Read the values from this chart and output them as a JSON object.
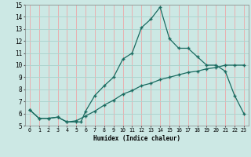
{
  "xlabel": "Humidex (Indice chaleur)",
  "background_color": "#cce8e4",
  "grid_color": "#aed4cf",
  "line_color": "#1a6b60",
  "xlim": [
    -0.5,
    23.5
  ],
  "ylim": [
    5,
    15
  ],
  "xticks": [
    0,
    1,
    2,
    3,
    4,
    5,
    6,
    7,
    8,
    9,
    10,
    11,
    12,
    13,
    14,
    15,
    16,
    17,
    18,
    19,
    20,
    21,
    22,
    23
  ],
  "yticks": [
    5,
    6,
    7,
    8,
    9,
    10,
    11,
    12,
    13,
    14,
    15
  ],
  "line1_x": [
    0,
    1,
    2,
    3,
    4,
    5,
    5.5,
    6,
    7,
    8,
    9,
    10,
    11,
    12,
    13,
    14,
    15,
    16,
    17,
    18,
    19,
    20,
    21,
    22,
    23
  ],
  "line1_y": [
    6.3,
    5.6,
    5.6,
    5.7,
    5.3,
    5.3,
    5.3,
    6.2,
    7.5,
    8.3,
    9.0,
    10.5,
    11.0,
    13.1,
    13.8,
    14.8,
    12.2,
    11.4,
    11.4,
    10.7,
    10.0,
    10.0,
    9.5,
    7.5,
    6.0
  ],
  "line2_x": [
    0,
    1,
    2,
    3,
    4,
    5,
    6,
    7,
    8,
    9,
    10,
    11,
    12,
    13,
    14,
    15,
    16,
    17,
    18,
    19,
    20,
    21,
    22,
    23
  ],
  "line2_y": [
    6.3,
    5.6,
    5.6,
    5.7,
    5.3,
    5.4,
    5.8,
    6.2,
    6.7,
    7.1,
    7.6,
    7.9,
    8.3,
    8.5,
    8.8,
    9.0,
    9.2,
    9.4,
    9.5,
    9.7,
    9.8,
    10.0,
    10.0,
    10.0
  ]
}
